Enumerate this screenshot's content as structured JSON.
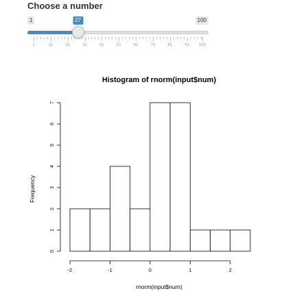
{
  "slider": {
    "label": "Choose a number",
    "min": 1,
    "max": 100,
    "value": 27,
    "min_label": "1",
    "max_label": "100",
    "value_label": "27",
    "tick_labels": [
      "1",
      "11",
      "21",
      "31",
      "41",
      "51",
      "61",
      "71",
      "81",
      "91",
      "100"
    ],
    "accent_color": "#428bca"
  },
  "chart_data": {
    "type": "bar",
    "title": "Histogram of rnorm(input$num)",
    "xlabel": "rnorm(input$num)",
    "ylabel": "Frequency",
    "bins": [
      {
        "start": -2.0,
        "end": -1.5,
        "count": 2
      },
      {
        "start": -1.5,
        "end": -1.0,
        "count": 2
      },
      {
        "start": -1.0,
        "end": -0.5,
        "count": 4
      },
      {
        "start": -0.5,
        "end": 0.0,
        "count": 2
      },
      {
        "start": 0.0,
        "end": 0.5,
        "count": 7
      },
      {
        "start": 0.5,
        "end": 1.0,
        "count": 7
      },
      {
        "start": 1.0,
        "end": 1.5,
        "count": 1
      },
      {
        "start": 1.5,
        "end": 2.0,
        "count": 1
      },
      {
        "start": 2.0,
        "end": 2.5,
        "count": 1
      }
    ],
    "xticks": [
      "-2",
      "-1",
      "0",
      "1",
      "2"
    ],
    "yticks": [
      "0",
      "1",
      "2",
      "3",
      "4",
      "5",
      "6",
      "7"
    ],
    "xlim": [
      -2.0,
      2.5
    ],
    "ylim": [
      0,
      7
    ],
    "grid": false
  }
}
